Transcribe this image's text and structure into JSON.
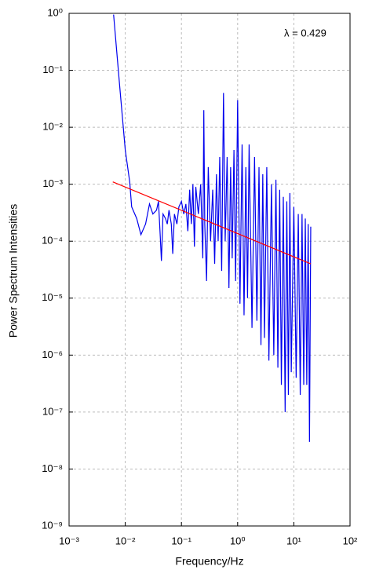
{
  "chart_data": {
    "type": "line",
    "xlabel": "Frequency/Hz",
    "ylabel": "Power Spectrum Intensities",
    "annotation": "λ = 0.429",
    "xscale": "log",
    "yscale": "log",
    "grid": true,
    "xlim": [
      0.001,
      100
    ],
    "ylim": [
      1e-09,
      1
    ],
    "xticks": [
      {
        "value": 0.001,
        "label": "10⁻³"
      },
      {
        "value": 0.01,
        "label": "10⁻²"
      },
      {
        "value": 0.1,
        "label": "10⁻¹"
      },
      {
        "value": 1,
        "label": "10⁰"
      },
      {
        "value": 10,
        "label": "10¹"
      },
      {
        "value": 100,
        "label": "10²"
      }
    ],
    "yticks": [
      {
        "value": 1,
        "label": "10⁰"
      },
      {
        "value": 0.1,
        "label": "10⁻¹"
      },
      {
        "value": 0.01,
        "label": "10⁻²"
      },
      {
        "value": 0.001,
        "label": "10⁻³"
      },
      {
        "value": 0.0001,
        "label": "10⁻⁴"
      },
      {
        "value": 1e-05,
        "label": "10⁻⁵"
      },
      {
        "value": 1e-06,
        "label": "10⁻⁶"
      },
      {
        "value": 1e-07,
        "label": "10⁻⁷"
      },
      {
        "value": 1e-08,
        "label": "10⁻⁸"
      },
      {
        "value": 1e-09,
        "label": "10⁻⁹"
      }
    ],
    "series": [
      {
        "color": "#0000ee",
        "x": [
          0.0062,
          0.008,
          0.01,
          0.012,
          0.013,
          0.016,
          0.019,
          0.023,
          0.027,
          0.031,
          0.036,
          0.039,
          0.042,
          0.044,
          0.047,
          0.052,
          0.056,
          0.06,
          0.066,
          0.07,
          0.075,
          0.083,
          0.09,
          0.1,
          0.11,
          0.12,
          0.13,
          0.14,
          0.15,
          0.16,
          0.17,
          0.18,
          0.2,
          0.22,
          0.24,
          0.25,
          0.26,
          0.28,
          0.3,
          0.33,
          0.36,
          0.39,
          0.42,
          0.45,
          0.48,
          0.52,
          0.56,
          0.6,
          0.65,
          0.7,
          0.75,
          0.8,
          0.86,
          0.92,
          1.0,
          1.1,
          1.2,
          1.3,
          1.4,
          1.5,
          1.6,
          1.8,
          2.0,
          2.2,
          2.4,
          2.6,
          2.8,
          3.0,
          3.3,
          3.6,
          4.0,
          4.4,
          4.8,
          5.2,
          5.6,
          6.0,
          6.5,
          7.0,
          7.5,
          8.0,
          8.5,
          9.0,
          10,
          11,
          12,
          13,
          14,
          15,
          16,
          17,
          18,
          19,
          20
        ],
        "values": [
          0.95,
          0.05,
          0.004,
          0.0011,
          0.0004,
          0.00025,
          0.00013,
          0.0002,
          0.00045,
          0.0003,
          0.00035,
          0.0005,
          0.00012,
          4.5e-05,
          0.0003,
          0.00025,
          0.0002,
          0.00035,
          0.0002,
          6e-05,
          0.0003,
          0.0002,
          0.0004,
          0.0005,
          0.0003,
          0.00045,
          0.00015,
          0.0008,
          0.0002,
          0.001,
          8e-05,
          0.0009,
          0.0003,
          0.001,
          5e-05,
          0.02,
          0.0002,
          2e-05,
          0.002,
          0.0001,
          0.0008,
          4e-05,
          0.0015,
          0.0001,
          0.003,
          3e-05,
          0.04,
          0.0001,
          0.003,
          1.5e-05,
          0.002,
          5e-05,
          0.004,
          2e-05,
          0.03,
          8e-06,
          0.005,
          5e-06,
          0.002,
          1e-05,
          0.005,
          3e-06,
          0.003,
          4e-06,
          0.002,
          1.5e-06,
          0.0015,
          2e-06,
          0.002,
          8e-07,
          0.001,
          1e-06,
          0.0012,
          6e-07,
          0.0008,
          3e-07,
          0.0006,
          1e-07,
          0.0005,
          2e-07,
          0.0007,
          5e-07,
          0.0004,
          4e-07,
          0.0003,
          2e-07,
          0.0003,
          3e-07,
          0.00025,
          3e-07,
          0.0002,
          3e-08,
          0.00018
        ]
      },
      {
        "color": "#ff0000",
        "x": [
          0.006,
          20
        ],
        "values": [
          0.0011,
          4e-05
        ]
      }
    ]
  }
}
